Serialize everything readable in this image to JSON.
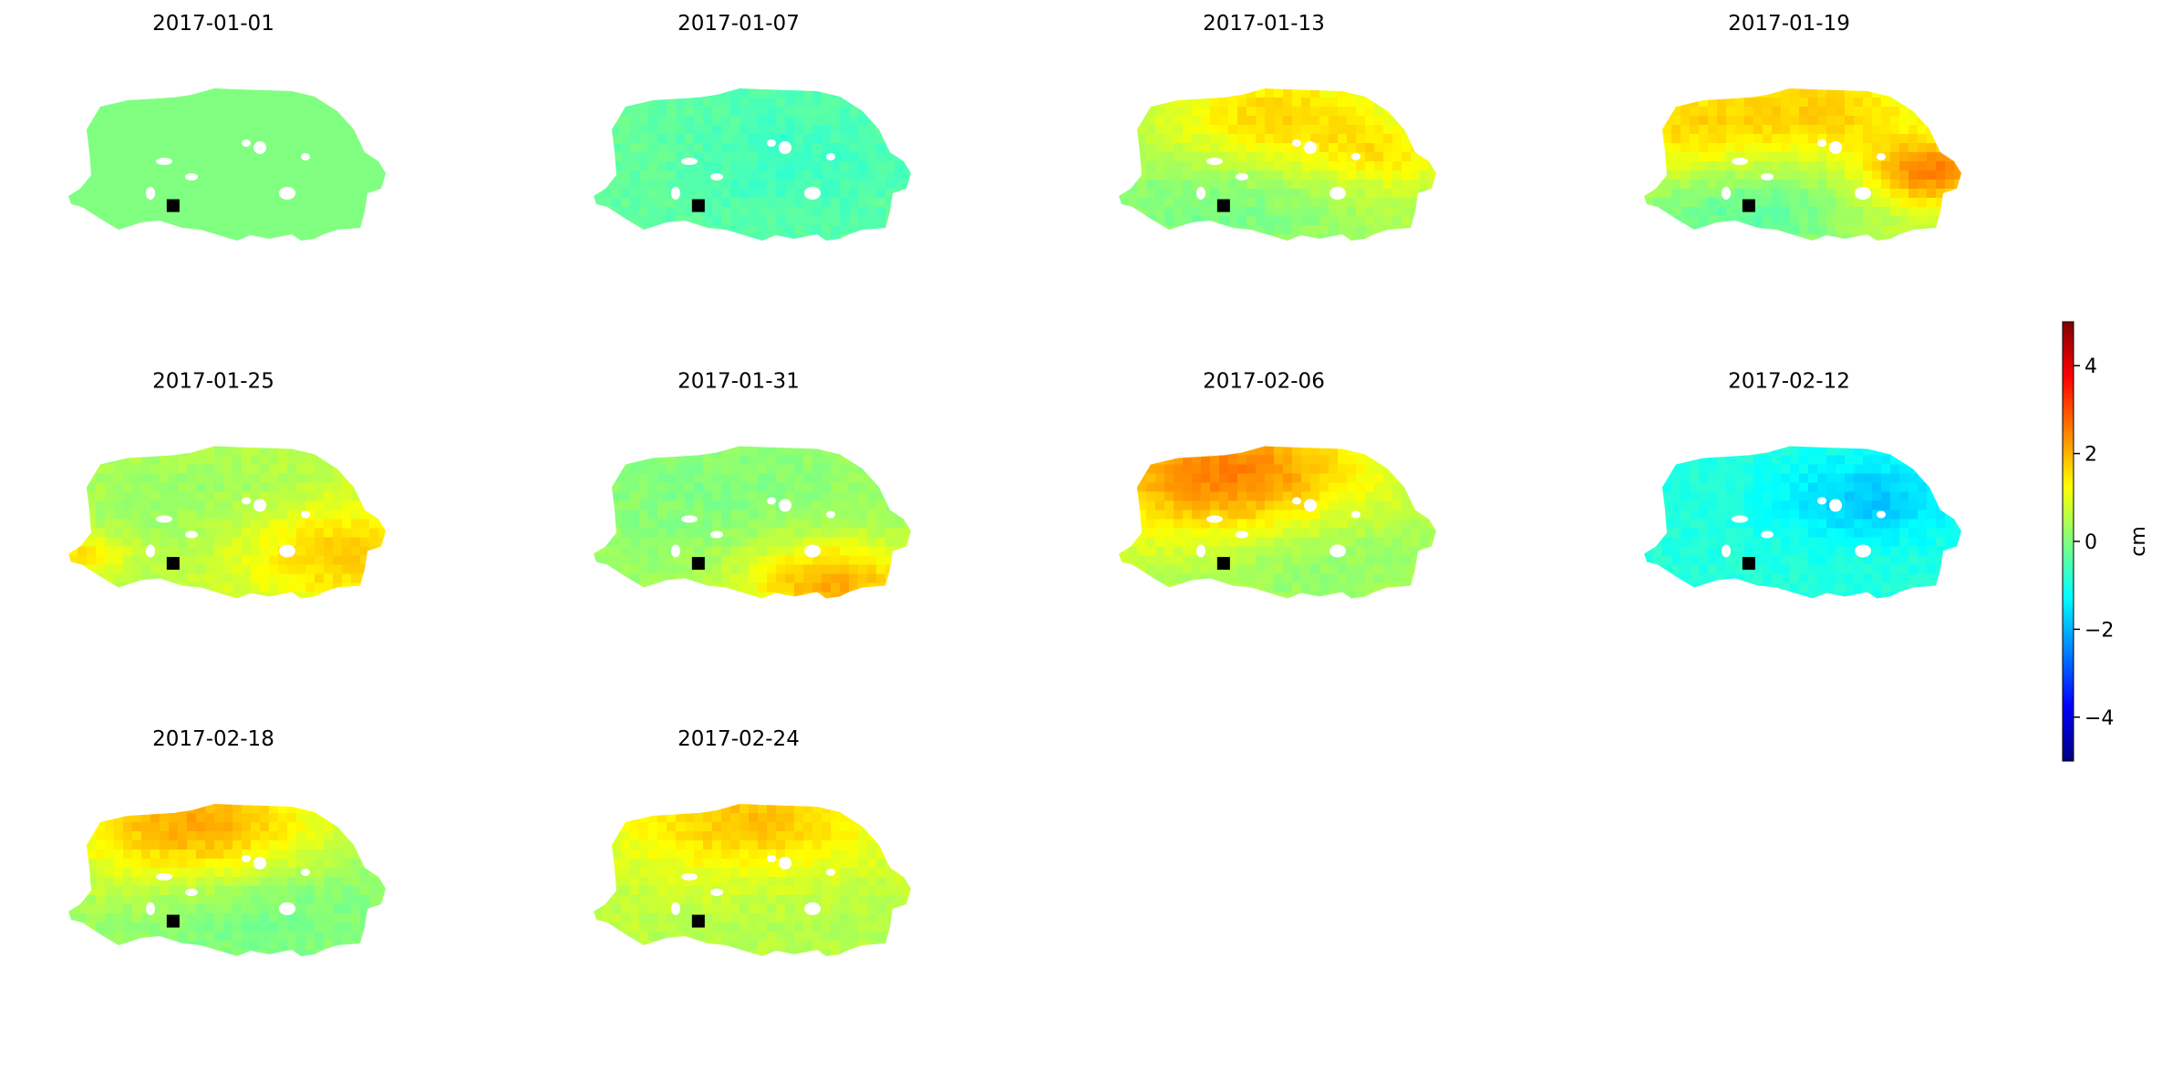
{
  "chart_data": {
    "type": "heatmap",
    "panels": [
      {
        "title": "2017-01-01",
        "base": 0.0,
        "features": []
      },
      {
        "title": "2017-01-07",
        "base": -0.3,
        "features": [
          {
            "u": 0.55,
            "v": 0.45,
            "r": 0.3,
            "amp": -0.4
          },
          {
            "u": 0.2,
            "v": 0.4,
            "r": 0.25,
            "amp": 0.2
          }
        ]
      },
      {
        "title": "2017-01-13",
        "base": 0.5,
        "features": [
          {
            "u": 0.5,
            "v": 0.2,
            "r": 0.25,
            "amp": 1.2
          },
          {
            "u": 0.85,
            "v": 0.45,
            "r": 0.15,
            "amp": 0.8
          },
          {
            "u": 0.3,
            "v": 0.8,
            "r": 0.3,
            "amp": -0.6
          }
        ]
      },
      {
        "title": "2017-01-19",
        "base": 0.8,
        "features": [
          {
            "u": 0.15,
            "v": 0.3,
            "r": 0.25,
            "amp": 1.0
          },
          {
            "u": 0.9,
            "v": 0.55,
            "r": 0.15,
            "amp": 1.8
          },
          {
            "u": 0.3,
            "v": 0.8,
            "r": 0.3,
            "amp": -1.2
          },
          {
            "u": 0.6,
            "v": 0.15,
            "r": 0.2,
            "amp": 0.8
          }
        ]
      },
      {
        "title": "2017-01-25",
        "base": 0.6,
        "features": [
          {
            "u": 0.85,
            "v": 0.7,
            "r": 0.25,
            "amp": 1.2
          },
          {
            "u": 0.4,
            "v": 0.4,
            "r": 0.3,
            "amp": -0.4
          },
          {
            "u": 0.05,
            "v": 0.7,
            "r": 0.1,
            "amp": 1.0
          }
        ]
      },
      {
        "title": "2017-01-31",
        "base": 0.3,
        "features": [
          {
            "u": 0.75,
            "v": 0.9,
            "r": 0.2,
            "amp": 1.8
          },
          {
            "u": 0.35,
            "v": 0.3,
            "r": 0.3,
            "amp": -0.3
          }
        ]
      },
      {
        "title": "2017-02-06",
        "base": 0.6,
        "features": [
          {
            "u": 0.35,
            "v": 0.2,
            "r": 0.3,
            "amp": 2.0
          },
          {
            "u": 0.6,
            "v": 0.7,
            "r": 0.3,
            "amp": -0.6
          }
        ]
      },
      {
        "title": "2017-02-12",
        "base": -0.9,
        "features": [
          {
            "u": 0.7,
            "v": 0.35,
            "r": 0.2,
            "amp": -0.9
          }
        ]
      },
      {
        "title": "2017-02-18",
        "base": 0.3,
        "features": [
          {
            "u": 0.4,
            "v": 0.15,
            "r": 0.3,
            "amp": 1.9
          },
          {
            "u": 0.6,
            "v": 0.65,
            "r": 0.3,
            "amp": -0.6
          }
        ]
      },
      {
        "title": "2017-02-24",
        "base": 0.6,
        "features": [
          {
            "u": 0.5,
            "v": 0.1,
            "r": 0.3,
            "amp": 1.3
          },
          {
            "u": 0.6,
            "v": 0.6,
            "r": 0.3,
            "amp": -0.2
          }
        ]
      }
    ],
    "colorbar": {
      "label": "cm",
      "ticks": [
        4,
        2,
        0,
        -2,
        -4
      ],
      "tick_labels": [
        "4",
        "2",
        "0",
        "−2",
        "−4"
      ],
      "range": [
        -5,
        5
      ],
      "colormap": "jet"
    },
    "reference_point": {
      "color": "#000000",
      "u": 0.33,
      "v": 0.77
    },
    "grid": false,
    "axes_visible": false
  }
}
